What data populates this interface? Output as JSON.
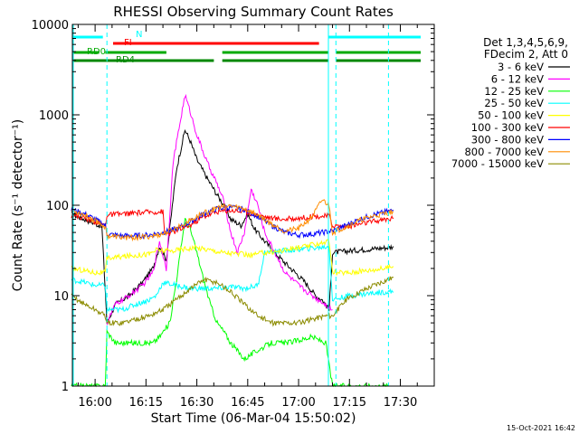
{
  "chart_data": {
    "type": "line",
    "title": "RHESSI Observing Summary Count Rates",
    "xlabel": "Start Time (06-Mar-04 15:50:02)",
    "ylabel": "Count Rate (s⁻¹ detector⁻¹)",
    "yscale": "log",
    "ylim": [
      1,
      10000
    ],
    "xlim_minutes": [
      -6.7,
      100
    ],
    "xticks": [
      {
        "t": 0,
        "label": "16:00"
      },
      {
        "t": 15,
        "label": "16:15"
      },
      {
        "t": 30,
        "label": "16:30"
      },
      {
        "t": 45,
        "label": "16:45"
      },
      {
        "t": 60,
        "label": "17:00"
      },
      {
        "t": 75,
        "label": "17:15"
      },
      {
        "t": 90,
        "label": "17:30"
      }
    ],
    "yticks": [
      {
        "v": 1,
        "label": "1"
      },
      {
        "v": 10,
        "label": "10"
      },
      {
        "v": 100,
        "label": "100"
      },
      {
        "v": 1000,
        "label": "1000"
      },
      {
        "v": 10000,
        "label": "10000"
      }
    ],
    "legend_header": [
      "Det 1,3,4,5,6,9,",
      "FDecim 2, Att 0"
    ],
    "legend_position": "right",
    "series": [
      {
        "name": "3 - 6 keV",
        "color": "#000000",
        "points": [
          [
            -7,
            80
          ],
          [
            -4,
            72
          ],
          [
            -1,
            65
          ],
          [
            2,
            58
          ],
          [
            3.5,
            5
          ],
          [
            6,
            8
          ],
          [
            10,
            10
          ],
          [
            14,
            14
          ],
          [
            17,
            20
          ],
          [
            19,
            35
          ],
          [
            21,
            25
          ],
          [
            22.5,
            80
          ],
          [
            24,
            250
          ],
          [
            26.5,
            680
          ],
          [
            28,
            520
          ],
          [
            30,
            320
          ],
          [
            33,
            200
          ],
          [
            36,
            130
          ],
          [
            38,
            100
          ],
          [
            40,
            70
          ],
          [
            43,
            60
          ],
          [
            45,
            80
          ],
          [
            47,
            55
          ],
          [
            50,
            40
          ],
          [
            53,
            30
          ],
          [
            56,
            23
          ],
          [
            59,
            18
          ],
          [
            62,
            14
          ],
          [
            65,
            10
          ],
          [
            67,
            9
          ],
          [
            69,
            7
          ],
          [
            70,
            30
          ],
          [
            74,
            31
          ],
          [
            78,
            32
          ],
          [
            82,
            33
          ],
          [
            86,
            34
          ],
          [
            88,
            35
          ]
        ]
      },
      {
        "name": "6 - 12 keV",
        "color": "#ff00ff",
        "points": [
          [
            3.5,
            5
          ],
          [
            6,
            8
          ],
          [
            10,
            10
          ],
          [
            14,
            13
          ],
          [
            17,
            18
          ],
          [
            19,
            40
          ],
          [
            21,
            20
          ],
          [
            23,
            300
          ],
          [
            25,
            800
          ],
          [
            26.5,
            1650
          ],
          [
            28,
            1100
          ],
          [
            30,
            600
          ],
          [
            33,
            300
          ],
          [
            36,
            170
          ],
          [
            38,
            110
          ],
          [
            40,
            50
          ],
          [
            42,
            30
          ],
          [
            44,
            50
          ],
          [
            46,
            150
          ],
          [
            48,
            100
          ],
          [
            50,
            50
          ],
          [
            53,
            30
          ],
          [
            56,
            18
          ],
          [
            60,
            13
          ],
          [
            64,
            10
          ],
          [
            68,
            8
          ],
          [
            70,
            7
          ]
        ]
      },
      {
        "name": "12 - 25 keV",
        "color": "#00ff00",
        "points": [
          [
            -7,
            1
          ],
          [
            3,
            1
          ],
          [
            3.5,
            4
          ],
          [
            6,
            3
          ],
          [
            10,
            3
          ],
          [
            14,
            3
          ],
          [
            17,
            3
          ],
          [
            19,
            3.5
          ],
          [
            22,
            5
          ],
          [
            24,
            15
          ],
          [
            26.5,
            70
          ],
          [
            28,
            55
          ],
          [
            30,
            30
          ],
          [
            32,
            15
          ],
          [
            34,
            8
          ],
          [
            36,
            5
          ],
          [
            38,
            4
          ],
          [
            40,
            3
          ],
          [
            44,
            2
          ],
          [
            48,
            2.5
          ],
          [
            52,
            3
          ],
          [
            56,
            3
          ],
          [
            60,
            3.2
          ],
          [
            64,
            3.5
          ],
          [
            68,
            3
          ],
          [
            70,
            1
          ],
          [
            75,
            1
          ],
          [
            88,
            1
          ]
        ]
      },
      {
        "name": "25 - 50 keV",
        "color": "#00ffff",
        "points": [
          [
            -7,
            15
          ],
          [
            -3,
            14
          ],
          [
            0,
            13
          ],
          [
            3,
            13
          ],
          [
            3.5,
            7
          ],
          [
            8,
            7
          ],
          [
            12,
            8
          ],
          [
            16,
            9
          ],
          [
            18,
            10
          ],
          [
            20,
            14
          ],
          [
            24,
            13
          ],
          [
            28,
            12
          ],
          [
            32,
            12
          ],
          [
            36,
            12
          ],
          [
            40,
            12.5
          ],
          [
            44,
            12
          ],
          [
            48,
            13
          ],
          [
            50,
            30
          ],
          [
            54,
            31
          ],
          [
            58,
            32
          ],
          [
            62,
            33
          ],
          [
            66,
            34
          ],
          [
            69,
            35
          ],
          [
            70,
            9
          ],
          [
            75,
            10
          ],
          [
            80,
            10.5
          ],
          [
            85,
            11
          ],
          [
            88,
            11
          ]
        ]
      },
      {
        "name": "50 - 100 keV",
        "color": "#ffff00",
        "points": [
          [
            -7,
            20
          ],
          [
            -3,
            19
          ],
          [
            0,
            18
          ],
          [
            3,
            18
          ],
          [
            3.5,
            26
          ],
          [
            8,
            27
          ],
          [
            12,
            28
          ],
          [
            16,
            29
          ],
          [
            18,
            32
          ],
          [
            22,
            31
          ],
          [
            26,
            33
          ],
          [
            30,
            34
          ],
          [
            34,
            32
          ],
          [
            38,
            30
          ],
          [
            42,
            29
          ],
          [
            46,
            28
          ],
          [
            50,
            30
          ],
          [
            54,
            31
          ],
          [
            58,
            33
          ],
          [
            62,
            35
          ],
          [
            66,
            38
          ],
          [
            69,
            40
          ],
          [
            70,
            18
          ],
          [
            75,
            18
          ],
          [
            80,
            19
          ],
          [
            85,
            20
          ],
          [
            88,
            21
          ]
        ]
      },
      {
        "name": "100 - 300 keV",
        "color": "#ff0000",
        "points": [
          [
            -7,
            78
          ],
          [
            -3,
            72
          ],
          [
            0,
            66
          ],
          [
            3,
            60
          ],
          [
            3.5,
            78
          ],
          [
            8,
            80
          ],
          [
            12,
            82
          ],
          [
            16,
            84
          ],
          [
            20,
            85
          ],
          [
            20.5,
            48
          ],
          [
            24,
            52
          ],
          [
            28,
            60
          ],
          [
            32,
            75
          ],
          [
            36,
            85
          ],
          [
            40,
            88
          ],
          [
            44,
            85
          ],
          [
            48,
            78
          ],
          [
            52,
            72
          ],
          [
            56,
            70
          ],
          [
            60,
            72
          ],
          [
            64,
            75
          ],
          [
            69,
            76
          ],
          [
            70,
            60
          ],
          [
            74,
            58
          ],
          [
            78,
            62
          ],
          [
            82,
            66
          ],
          [
            86,
            70
          ],
          [
            88,
            72
          ]
        ]
      },
      {
        "name": "300 - 800 keV",
        "color": "#0000ff",
        "points": [
          [
            -7,
            90
          ],
          [
            -3,
            80
          ],
          [
            0,
            70
          ],
          [
            3,
            60
          ],
          [
            3.5,
            48
          ],
          [
            8,
            46
          ],
          [
            12,
            46
          ],
          [
            16,
            47
          ],
          [
            20,
            50
          ],
          [
            24,
            55
          ],
          [
            28,
            65
          ],
          [
            32,
            80
          ],
          [
            36,
            92
          ],
          [
            40,
            95
          ],
          [
            44,
            90
          ],
          [
            48,
            75
          ],
          [
            52,
            60
          ],
          [
            56,
            50
          ],
          [
            60,
            47
          ],
          [
            64,
            48
          ],
          [
            67,
            50
          ],
          [
            70,
            52
          ],
          [
            74,
            60
          ],
          [
            78,
            70
          ],
          [
            82,
            78
          ],
          [
            86,
            85
          ],
          [
            88,
            88
          ]
        ]
      },
      {
        "name": "800 - 7000 keV",
        "color": "#ff8c00",
        "points": [
          [
            -7,
            88
          ],
          [
            -3,
            78
          ],
          [
            0,
            68
          ],
          [
            3,
            58
          ],
          [
            3.5,
            46
          ],
          [
            8,
            44
          ],
          [
            12,
            44
          ],
          [
            16,
            45
          ],
          [
            20,
            48
          ],
          [
            24,
            56
          ],
          [
            28,
            68
          ],
          [
            32,
            82
          ],
          [
            36,
            94
          ],
          [
            40,
            98
          ],
          [
            44,
            92
          ],
          [
            48,
            78
          ],
          [
            52,
            62
          ],
          [
            56,
            52
          ],
          [
            60,
            55
          ],
          [
            64,
            75
          ],
          [
            67,
            115
          ],
          [
            69,
            100
          ],
          [
            70,
            50
          ],
          [
            74,
            58
          ],
          [
            78,
            68
          ],
          [
            82,
            76
          ],
          [
            86,
            82
          ],
          [
            88,
            85
          ]
        ]
      },
      {
        "name": "7000 - 15000 keV",
        "color": "#8b8b00",
        "points": [
          [
            -7,
            10
          ],
          [
            -3,
            8
          ],
          [
            0,
            7
          ],
          [
            3,
            6
          ],
          [
            3.5,
            5
          ],
          [
            8,
            5
          ],
          [
            12,
            5.5
          ],
          [
            16,
            6
          ],
          [
            20,
            7
          ],
          [
            24,
            9
          ],
          [
            28,
            12
          ],
          [
            32,
            15
          ],
          [
            36,
            14
          ],
          [
            40,
            11
          ],
          [
            44,
            8
          ],
          [
            48,
            6
          ],
          [
            52,
            5
          ],
          [
            56,
            5
          ],
          [
            60,
            5
          ],
          [
            64,
            5.5
          ],
          [
            68,
            6
          ],
          [
            70,
            6
          ],
          [
            74,
            9
          ],
          [
            78,
            11
          ],
          [
            82,
            13
          ],
          [
            86,
            15
          ],
          [
            88,
            16
          ]
        ]
      }
    ],
    "flag_bars": [
      {
        "name": "N",
        "color": "#00ffff",
        "segments": [
          [
            -7,
            2.3
          ],
          [
            68.8,
            100
          ]
        ]
      },
      {
        "name": "FI",
        "color": "#ff0000",
        "segments": [
          [
            5.3,
            66
          ]
        ]
      },
      {
        "name": "RD0",
        "color": "#00aa00",
        "segments": [
          [
            -7,
            1.2
          ],
          [
            3,
            21
          ],
          [
            37.5,
            68.8
          ],
          [
            71,
            100
          ]
        ]
      },
      {
        "name": "RD4",
        "color": "#008800",
        "segments": [
          [
            -7,
            9
          ],
          [
            9,
            35
          ],
          [
            37.5,
            68.8
          ],
          [
            71,
            100
          ]
        ]
      }
    ],
    "vertical_markers": [
      {
        "t": 3.5,
        "color": "#00ffff",
        "style": "dashed"
      },
      {
        "t": 68.8,
        "color": "#00ffff",
        "style": "solid"
      },
      {
        "t": 71,
        "color": "#00ffff",
        "style": "dashed"
      },
      {
        "t": 86.5,
        "color": "#00ffff",
        "style": "dashed"
      }
    ],
    "footnote": "15-Oct-2021 16:42"
  }
}
